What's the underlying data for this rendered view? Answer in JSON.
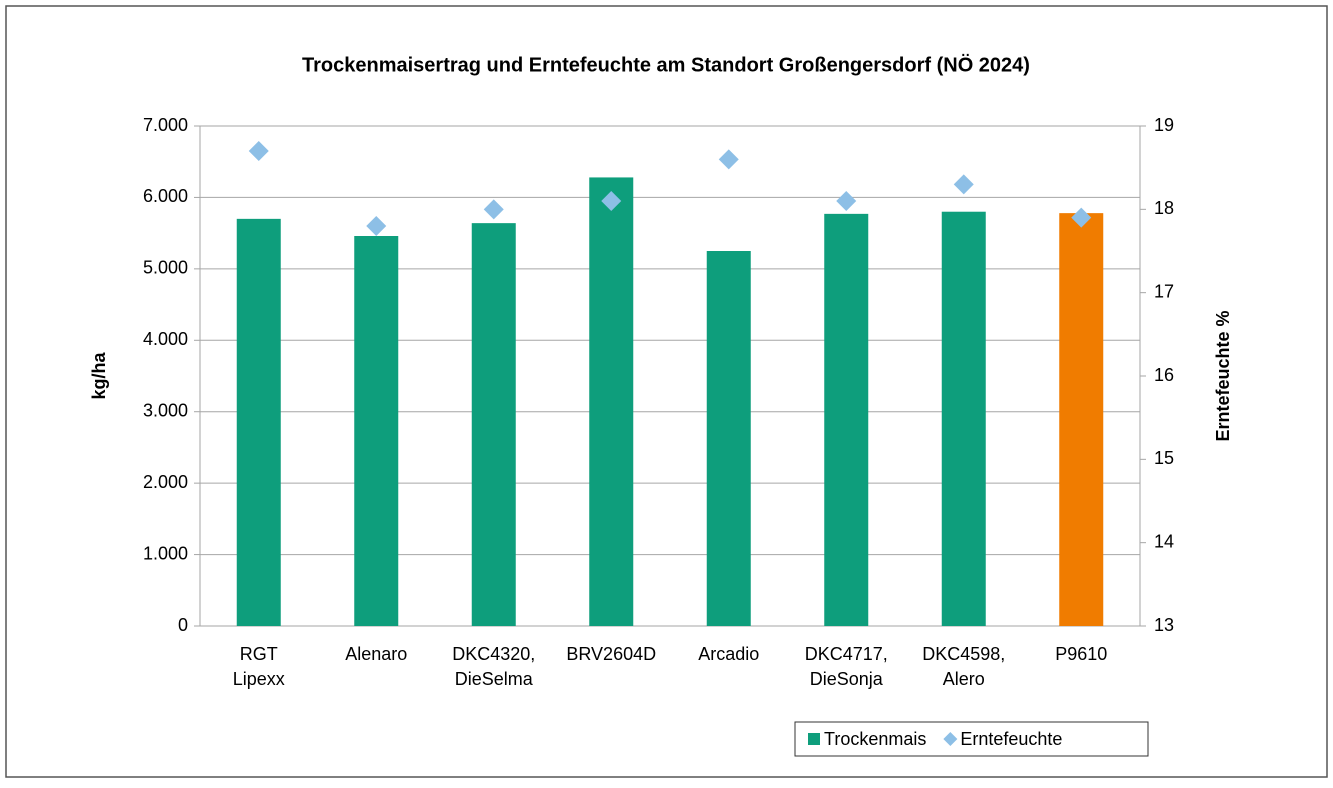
{
  "chart_data": {
    "type": "bar_scatter",
    "title": "Trockenmaisertrag und Erntefeuchte am Standort Großengersdorf (NÖ 2024)",
    "ylabel": "kg/ha",
    "y2label": "Erntefeuchte %",
    "categories": [
      "RGT Lipexx",
      "Alenaro",
      "DKC4320, DieSelma",
      "BRV2604D",
      "Arcadio",
      "DKC4717, DieSonja",
      "DKC4598, Alero",
      "P9610"
    ],
    "series": [
      {
        "name": "Trockenmais",
        "type": "bar",
        "color": "#0e9e7c",
        "bar_colors": [
          "#0e9e7c",
          "#0e9e7c",
          "#0e9e7c",
          "#0e9e7c",
          "#0e9e7c",
          "#0e9e7c",
          "#0e9e7c",
          "#f07c00"
        ],
        "values": [
          5700,
          5460,
          5640,
          6280,
          5250,
          5770,
          5800,
          5780
        ]
      },
      {
        "name": "Erntefeuchte",
        "type": "scatter",
        "axis": "y2",
        "color": "#8dbfe6",
        "values": [
          18.7,
          17.8,
          18.0,
          18.1,
          18.6,
          18.1,
          18.3,
          17.9
        ]
      }
    ],
    "ylim": [
      0,
      7000
    ],
    "yticks": [
      0,
      {
        "value": 1000,
        "label": "1.000"
      },
      {
        "value": 2000,
        "label": "2.000"
      },
      {
        "value": 3000,
        "label": "3.000"
      },
      {
        "value": 4000,
        "label": "4.000"
      },
      {
        "value": 5000,
        "label": "5.000"
      },
      {
        "value": 6000,
        "label": "6.000"
      },
      {
        "value": 7000,
        "label": "7.000"
      }
    ],
    "y2lim": [
      13,
      19
    ],
    "y2ticks": [
      13,
      14,
      15,
      16,
      17,
      18,
      19
    ],
    "grid": true,
    "legend": "bottom-right"
  }
}
